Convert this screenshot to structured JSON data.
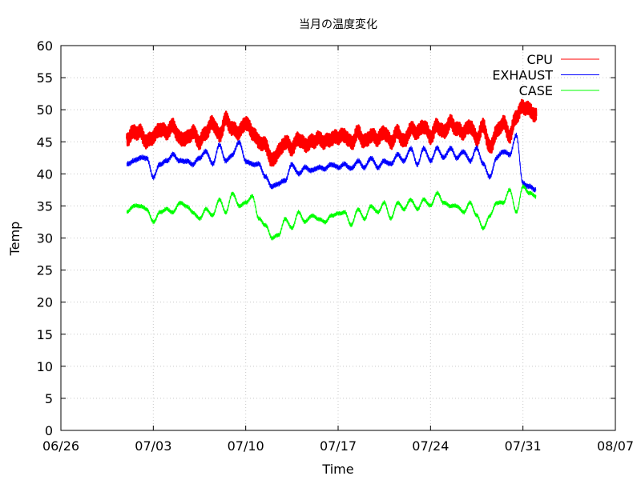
{
  "chart_data": {
    "type": "line",
    "title": "当月の温度変化",
    "xlabel": "Time",
    "ylabel": "Temp",
    "ylim": [
      0,
      60
    ],
    "yticks": [
      0,
      5,
      10,
      15,
      20,
      25,
      30,
      35,
      40,
      45,
      50,
      55,
      60
    ],
    "xlim": [
      "2023-06-26",
      "2023-08-07"
    ],
    "xticks": [
      {
        "date": "2023-06-26",
        "label": "06/26"
      },
      {
        "date": "2023-07-03",
        "label": "07/03"
      },
      {
        "date": "2023-07-10",
        "label": "07/10"
      },
      {
        "date": "2023-07-17",
        "label": "07/17"
      },
      {
        "date": "2023-07-24",
        "label": "07/24"
      },
      {
        "date": "2023-07-31",
        "label": "07/31"
      },
      {
        "date": "2023-08-07",
        "label": "08/07"
      }
    ],
    "grid": true,
    "legend_position": "top-right",
    "series": [
      {
        "name": "CPU",
        "color": "#ff0000",
        "x": [
          "2023-07-01",
          "2023-07-01 12:00",
          "2023-07-02",
          "2023-07-02 12:00",
          "2023-07-03",
          "2023-07-03 12:00",
          "2023-07-04",
          "2023-07-04 12:00",
          "2023-07-05",
          "2023-07-05 12:00",
          "2023-07-06",
          "2023-07-06 12:00",
          "2023-07-07",
          "2023-07-07 12:00",
          "2023-07-08",
          "2023-07-08 12:00",
          "2023-07-09",
          "2023-07-09 12:00",
          "2023-07-10",
          "2023-07-10 12:00",
          "2023-07-11",
          "2023-07-11 12:00",
          "2023-07-12",
          "2023-07-12 12:00",
          "2023-07-13",
          "2023-07-13 12:00",
          "2023-07-14",
          "2023-07-14 12:00",
          "2023-07-15",
          "2023-07-15 12:00",
          "2023-07-16",
          "2023-07-16 12:00",
          "2023-07-17",
          "2023-07-17 12:00",
          "2023-07-18",
          "2023-07-18 12:00",
          "2023-07-19",
          "2023-07-19 12:00",
          "2023-07-20",
          "2023-07-20 12:00",
          "2023-07-21",
          "2023-07-21 12:00",
          "2023-07-22",
          "2023-07-22 12:00",
          "2023-07-23",
          "2023-07-23 12:00",
          "2023-07-24",
          "2023-07-24 12:00",
          "2023-07-25",
          "2023-07-25 12:00",
          "2023-07-26",
          "2023-07-26 12:00",
          "2023-07-27",
          "2023-07-27 12:00",
          "2023-07-28",
          "2023-07-28 12:00",
          "2023-07-29",
          "2023-07-29 12:00",
          "2023-07-30",
          "2023-07-30 12:00",
          "2023-07-31",
          "2023-07-31 12:00",
          "2023-08-01"
        ],
        "values": [
          45.5,
          46.5,
          46.5,
          45.0,
          45.8,
          47.0,
          46.5,
          47.5,
          45.5,
          45.5,
          46.5,
          45.0,
          46.5,
          48.0,
          46.0,
          48.5,
          47.0,
          46.5,
          48.0,
          46.5,
          45.0,
          44.5,
          42.0,
          43.5,
          45.0,
          44.0,
          45.5,
          44.5,
          45.0,
          45.5,
          45.0,
          45.5,
          45.8,
          46.0,
          44.8,
          46.5,
          45.0,
          46.0,
          45.5,
          46.5,
          45.0,
          46.5,
          45.0,
          47.0,
          46.5,
          47.5,
          45.8,
          47.5,
          46.5,
          48.0,
          47.0,
          46.5,
          47.5,
          45.5,
          47.5,
          44.0,
          46.5,
          48.0,
          46.0,
          49.0,
          50.5,
          50.0,
          49.0
        ]
      },
      {
        "name": "EXHAUST",
        "color": "#0000ff",
        "x": [
          "2023-07-01",
          "2023-07-01 12:00",
          "2023-07-02",
          "2023-07-02 12:00",
          "2023-07-03",
          "2023-07-03 12:00",
          "2023-07-04",
          "2023-07-04 12:00",
          "2023-07-05",
          "2023-07-05 12:00",
          "2023-07-06",
          "2023-07-06 12:00",
          "2023-07-07",
          "2023-07-07 12:00",
          "2023-07-08",
          "2023-07-08 12:00",
          "2023-07-09",
          "2023-07-09 12:00",
          "2023-07-10",
          "2023-07-10 12:00",
          "2023-07-11",
          "2023-07-11 12:00",
          "2023-07-12",
          "2023-07-12 12:00",
          "2023-07-13",
          "2023-07-13 12:00",
          "2023-07-14",
          "2023-07-14 12:00",
          "2023-07-15",
          "2023-07-15 12:00",
          "2023-07-16",
          "2023-07-16 12:00",
          "2023-07-17",
          "2023-07-17 12:00",
          "2023-07-18",
          "2023-07-18 12:00",
          "2023-07-19",
          "2023-07-19 12:00",
          "2023-07-20",
          "2023-07-20 12:00",
          "2023-07-21",
          "2023-07-21 12:00",
          "2023-07-22",
          "2023-07-22 12:00",
          "2023-07-23",
          "2023-07-23 12:00",
          "2023-07-24",
          "2023-07-24 12:00",
          "2023-07-25",
          "2023-07-25 12:00",
          "2023-07-26",
          "2023-07-26 12:00",
          "2023-07-27",
          "2023-07-27 12:00",
          "2023-07-28",
          "2023-07-28 12:00",
          "2023-07-29",
          "2023-07-29 12:00",
          "2023-07-30",
          "2023-07-30 12:00",
          "2023-07-31",
          "2023-07-31 12:00",
          "2023-08-01"
        ],
        "values": [
          41.5,
          42.0,
          42.5,
          42.5,
          39.5,
          41.5,
          42.0,
          43.0,
          42.0,
          42.0,
          41.5,
          42.5,
          43.5,
          41.5,
          44.5,
          42.0,
          43.0,
          45.0,
          42.0,
          41.5,
          41.5,
          39.5,
          38.0,
          38.5,
          39.0,
          41.5,
          40.0,
          41.0,
          40.5,
          41.0,
          40.8,
          41.5,
          41.0,
          41.5,
          40.8,
          42.0,
          41.0,
          42.5,
          41.0,
          42.0,
          41.5,
          43.0,
          42.0,
          44.0,
          41.5,
          44.0,
          42.0,
          44.0,
          42.5,
          44.0,
          42.5,
          43.5,
          42.0,
          44.0,
          41.5,
          39.5,
          42.5,
          43.5,
          43.0,
          46.0,
          38.5,
          38.0,
          37.5
        ]
      },
      {
        "name": "CASE",
        "color": "#00ff00",
        "x": [
          "2023-07-01",
          "2023-07-01 12:00",
          "2023-07-02",
          "2023-07-02 12:00",
          "2023-07-03",
          "2023-07-03 12:00",
          "2023-07-04",
          "2023-07-04 12:00",
          "2023-07-05",
          "2023-07-05 12:00",
          "2023-07-06",
          "2023-07-06 12:00",
          "2023-07-07",
          "2023-07-07 12:00",
          "2023-07-08",
          "2023-07-08 12:00",
          "2023-07-09",
          "2023-07-09 12:00",
          "2023-07-10",
          "2023-07-10 12:00",
          "2023-07-11",
          "2023-07-11 12:00",
          "2023-07-12",
          "2023-07-12 12:00",
          "2023-07-13",
          "2023-07-13 12:00",
          "2023-07-14",
          "2023-07-14 12:00",
          "2023-07-15",
          "2023-07-15 12:00",
          "2023-07-16",
          "2023-07-16 12:00",
          "2023-07-17",
          "2023-07-17 12:00",
          "2023-07-18",
          "2023-07-18 12:00",
          "2023-07-19",
          "2023-07-19 12:00",
          "2023-07-20",
          "2023-07-20 12:00",
          "2023-07-21",
          "2023-07-21 12:00",
          "2023-07-22",
          "2023-07-22 12:00",
          "2023-07-23",
          "2023-07-23 12:00",
          "2023-07-24",
          "2023-07-24 12:00",
          "2023-07-25",
          "2023-07-25 12:00",
          "2023-07-26",
          "2023-07-26 12:00",
          "2023-07-27",
          "2023-07-27 12:00",
          "2023-07-28",
          "2023-07-28 12:00",
          "2023-07-29",
          "2023-07-29 12:00",
          "2023-07-30",
          "2023-07-30 12:00",
          "2023-07-31",
          "2023-07-31 12:00",
          "2023-08-01"
        ],
        "values": [
          34.0,
          35.0,
          35.0,
          34.5,
          32.5,
          34.0,
          34.5,
          34.0,
          35.5,
          35.0,
          34.0,
          33.0,
          34.5,
          33.5,
          36.0,
          34.0,
          37.0,
          35.0,
          35.5,
          36.5,
          33.0,
          32.0,
          30.0,
          30.5,
          33.0,
          31.5,
          34.0,
          32.5,
          33.5,
          33.0,
          32.5,
          33.5,
          33.8,
          34.0,
          32.0,
          34.5,
          33.0,
          35.0,
          34.0,
          35.5,
          33.0,
          35.5,
          34.5,
          36.0,
          34.5,
          36.0,
          35.0,
          37.0,
          35.5,
          35.0,
          35.0,
          34.0,
          35.5,
          33.5,
          31.5,
          33.5,
          35.5,
          35.5,
          37.5,
          34.0,
          38.0,
          37.0,
          36.5
        ]
      }
    ]
  }
}
